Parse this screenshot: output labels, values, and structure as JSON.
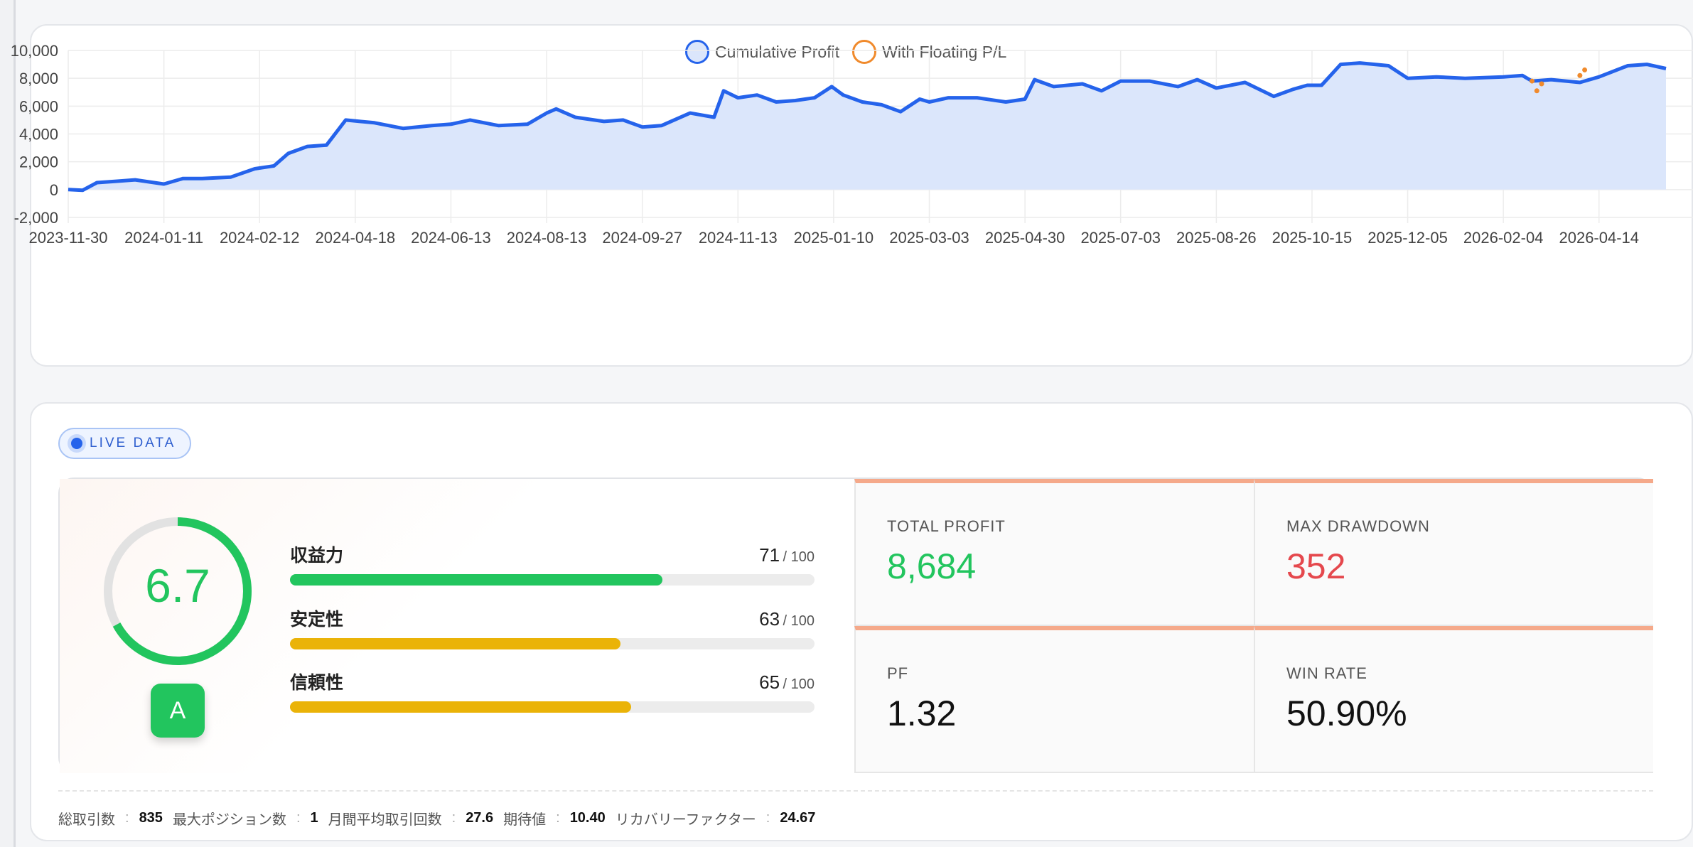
{
  "legend": {
    "cumulative": "Cumulative Profit",
    "floating": "With Floating P/L"
  },
  "chart_data": {
    "type": "area",
    "title": "",
    "xlabel": "",
    "ylabel": "",
    "ylim": [
      -2000,
      10000
    ],
    "yticks": [
      "10,000",
      "8,000",
      "6,000",
      "4,000",
      "2,000",
      "0",
      "-2,000"
    ],
    "xticks": [
      "2023-11-30",
      "2024-01-11",
      "2024-02-12",
      "2024-04-18",
      "2024-06-13",
      "2024-08-13",
      "2024-09-27",
      "2024-11-13",
      "2025-01-10",
      "2025-03-03",
      "2025-04-30",
      "2025-07-03",
      "2025-08-26",
      "2025-10-15",
      "2025-12-05",
      "2026-02-04",
      "2026-04-14"
    ],
    "grid": true,
    "legend_position": "top-center",
    "series": [
      {
        "name": "Cumulative Profit",
        "color": "#2563eb",
        "x": [
          0,
          0.15,
          0.3,
          0.5,
          0.7,
          1.0,
          1.2,
          1.4,
          1.7,
          1.95,
          2.15,
          2.3,
          2.5,
          2.7,
          2.9,
          3.05,
          3.2,
          3.5,
          3.8,
          4.0,
          4.2,
          4.5,
          4.8,
          5.0,
          5.1,
          5.3,
          5.6,
          5.8,
          6.0,
          6.2,
          6.5,
          6.75,
          6.85,
          7.0,
          7.2,
          7.4,
          7.6,
          7.8,
          7.98,
          8.1,
          8.3,
          8.5,
          8.7,
          8.9,
          9.0,
          9.2,
          9.5,
          9.8,
          10.0,
          10.1,
          10.3,
          10.6,
          10.8,
          11.0,
          11.3,
          11.6,
          11.8,
          12.0,
          12.3,
          12.6,
          12.8,
          12.95,
          13.1,
          13.3,
          13.5,
          13.8,
          14.0,
          14.3,
          14.6,
          15.0,
          15.2,
          15.3,
          15.5,
          15.8,
          16.0,
          16.3,
          16.5,
          16.7
        ],
        "values": [
          0,
          -50,
          500,
          600,
          700,
          400,
          800,
          800,
          900,
          1500,
          1700,
          2600,
          3100,
          3200,
          5000,
          4900,
          4800,
          4400,
          4600,
          4700,
          5000,
          4600,
          4700,
          5500,
          5800,
          5200,
          4900,
          5000,
          4500,
          4600,
          5500,
          5200,
          7100,
          6600,
          6800,
          6300,
          6400,
          6600,
          7400,
          6800,
          6300,
          6100,
          5600,
          6500,
          6300,
          6600,
          6600,
          6300,
          6500,
          7900,
          7400,
          7600,
          7100,
          7800,
          7800,
          7400,
          7900,
          7300,
          7700,
          6700,
          7200,
          7500,
          7500,
          9000,
          9100,
          8900,
          8000,
          8100,
          8000,
          8100,
          8200,
          7800,
          7900,
          7700,
          8100,
          8900,
          9000,
          8700
        ]
      },
      {
        "name": "With Floating P/L",
        "color": "#f08a2c",
        "x": [
          15.3,
          15.35,
          15.4,
          15.8,
          15.85
        ],
        "values": [
          7800,
          7100,
          7600,
          8200,
          8600
        ]
      }
    ]
  },
  "live_badge": "LIVE DATA",
  "score": {
    "value": "6.7",
    "fraction": 0.67,
    "grade": "A"
  },
  "metrics": [
    {
      "name": "収益力",
      "score": "71",
      "max": "/ 100",
      "percent": 71,
      "color": "#22c55e"
    },
    {
      "name": "安定性",
      "score": "63",
      "max": "/ 100",
      "percent": 63,
      "color": "#eab308"
    },
    {
      "name": "信頼性",
      "score": "65",
      "max": "/ 100",
      "percent": 65,
      "color": "#eab308"
    }
  ],
  "kpis": {
    "total_profit": {
      "label": "TOTAL PROFIT",
      "value": "8,684"
    },
    "max_drawdown": {
      "label": "MAX DRAWDOWN",
      "value": "352"
    },
    "pf": {
      "label": "PF",
      "value": "1.32"
    },
    "win_rate": {
      "label": "WIN RATE",
      "value": "50.90%"
    }
  },
  "footer": {
    "total_trades_label": "総取引数",
    "total_trades": "835",
    "max_positions_label": "最大ポジション数",
    "max_positions": "1",
    "monthly_trades_label": "月間平均取引回数",
    "monthly_trades": "27.6",
    "expectancy_label": "期待値",
    "expectancy": "10.40",
    "recovery_label": "リカバリーファクター",
    "recovery": "24.67",
    "separator": ":"
  },
  "colors": {
    "accent_blue": "#2563eb",
    "fill_blue": "#dbe6fb",
    "green": "#22c55e",
    "red": "#e5484d",
    "yellow": "#eab308",
    "kpi_top": "#f5a98a"
  }
}
